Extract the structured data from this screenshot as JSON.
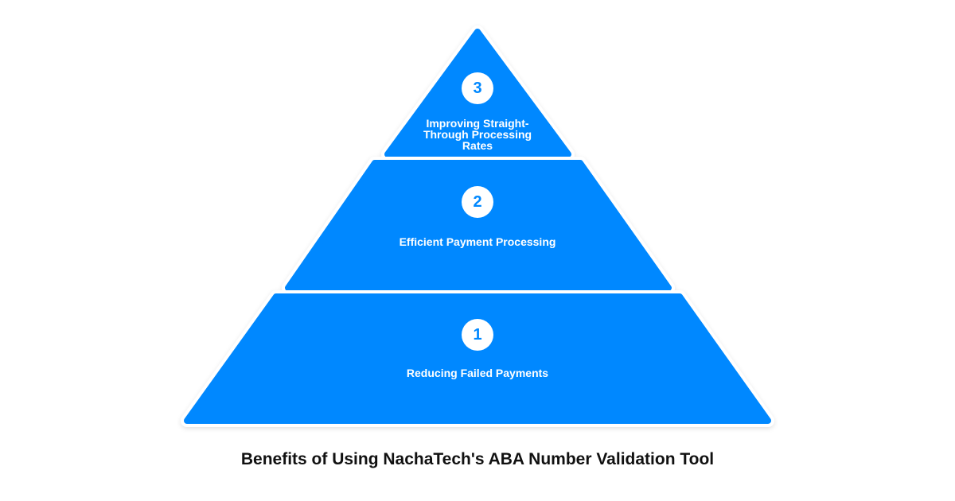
{
  "diagram": {
    "type": "pyramid",
    "fill_color": "#0088FF",
    "tiers": [
      {
        "number": "3",
        "label": "Improving Straight-Through Processing Rates"
      },
      {
        "number": "2",
        "label": "Efficient Payment Processing"
      },
      {
        "number": "1",
        "label": "Reducing Failed Payments"
      }
    ],
    "caption": "Benefits of Using NachaTech's ABA Number Validation Tool"
  }
}
